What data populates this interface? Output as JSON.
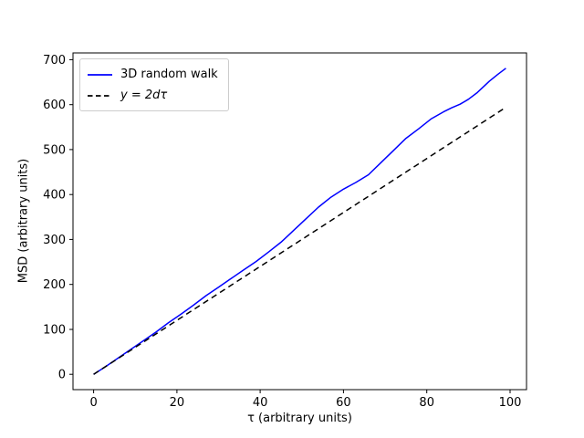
{
  "chart_data": {
    "type": "line",
    "title": "",
    "xlabel": "τ (arbitrary units)",
    "ylabel": "MSD (arbitrary units)",
    "xlim": [
      -4.95,
      103.95
    ],
    "ylim": [
      -34.05,
      715.05
    ],
    "x_ticks": [
      0,
      20,
      40,
      60,
      80,
      100
    ],
    "y_ticks": [
      0,
      100,
      200,
      300,
      400,
      500,
      600,
      700
    ],
    "grid": false,
    "legend_position": "upper left",
    "frame_color": "#000000",
    "series": [
      {
        "name": "3D random walk",
        "color": "#0000ff",
        "style": "solid",
        "x": [
          0,
          3,
          6,
          9,
          12,
          15,
          18,
          21,
          24,
          27,
          30,
          33,
          36,
          39,
          42,
          45,
          48,
          51,
          54,
          57,
          60,
          63,
          66,
          69,
          72,
          75,
          78,
          81,
          84,
          86,
          88,
          90,
          92,
          95,
          97,
          99
        ],
        "y": [
          0,
          18,
          37,
          56,
          75,
          94,
          115,
          134,
          154,
          175,
          194,
          213,
          232,
          251,
          272,
          294,
          320,
          346,
          372,
          394,
          412,
          427,
          444,
          471,
          498,
          525,
          546,
          568,
          584,
          593,
          601,
          612,
          626,
          652,
          667,
          681
        ]
      },
      {
        "name": "y = 2dτ",
        "color": "#000000",
        "style": "dashed",
        "x": [
          0,
          99
        ],
        "y": [
          0,
          594
        ]
      }
    ]
  }
}
